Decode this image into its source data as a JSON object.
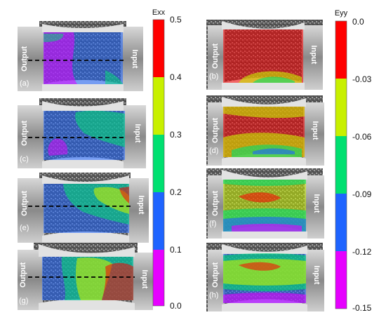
{
  "left_colorbar": {
    "title": "Exx",
    "ticks": [
      "0.5",
      "0.4",
      "0.3",
      "0.2",
      "0.1",
      "0.0"
    ],
    "colors": [
      "#ff0000",
      "#c8f000",
      "#00e070",
      "#1e64ff",
      "#e600ff"
    ]
  },
  "right_colorbar": {
    "title": "Eyy",
    "ticks": [
      "0.0",
      "-0.03",
      "-0.06",
      "-0.09",
      "-0.12",
      "-0.15"
    ],
    "colors": [
      "#ff0000",
      "#c8f000",
      "#00e070",
      "#1e64ff",
      "#e600ff"
    ]
  },
  "labels": {
    "output": "Output",
    "input": "Input"
  },
  "panels": [
    {
      "letter": "(a)",
      "strain": "Exx"
    },
    {
      "letter": "(b)",
      "strain": "Eyy"
    },
    {
      "letter": "(c)",
      "strain": "Exx"
    },
    {
      "letter": "(d)",
      "strain": "Eyy"
    },
    {
      "letter": "(e)",
      "strain": "Exx"
    },
    {
      "letter": "(f)",
      "strain": "Eyy"
    },
    {
      "letter": "(g)",
      "strain": "Exx"
    },
    {
      "letter": "(h)",
      "strain": "Eyy"
    }
  ]
}
